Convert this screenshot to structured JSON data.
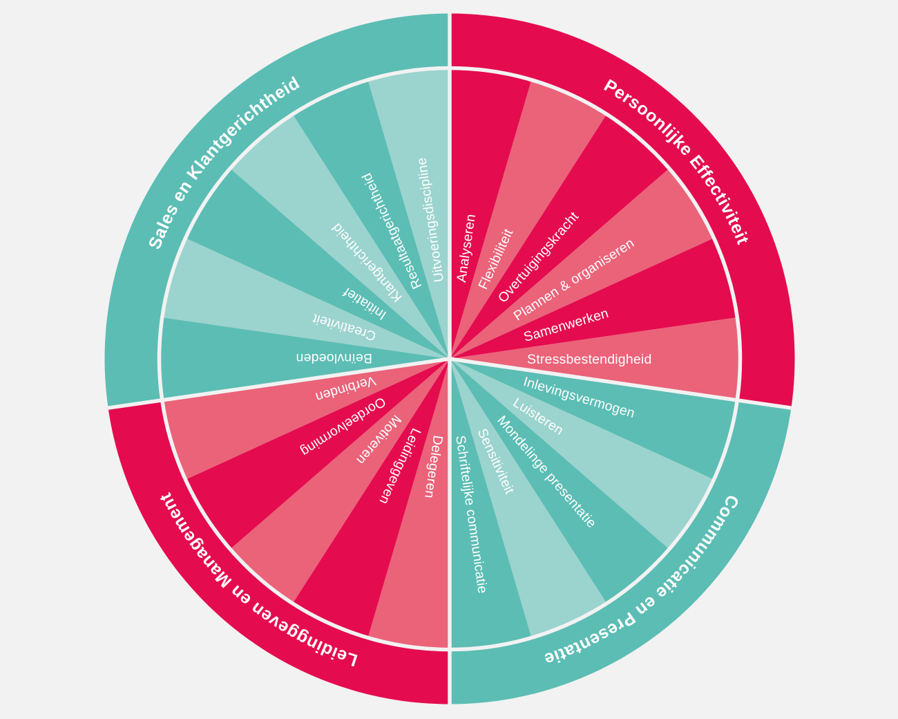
{
  "colors": {
    "background": "#f2f2f2",
    "separator": "#f2f2f2",
    "crimson": "#e50b4f",
    "crimson_light": "#ea6379",
    "teal": "#5cbdb4",
    "teal_light": "#9bd3ce",
    "label_text": "#ffffff"
  },
  "wheel": {
    "quadrants": [
      {
        "name": "Persoonlijke Effectiviteit",
        "band_color": "#e50b4f",
        "wedges": [
          {
            "label": "Analyseren",
            "color": "#e50b4f"
          },
          {
            "label": "Flexibiliteit",
            "color": "#ea6379"
          },
          {
            "label": "Overtuigingskracht",
            "color": "#e50b4f"
          },
          {
            "label": "Plannen & organiseren",
            "color": "#ea6379"
          },
          {
            "label": "Samenwerken",
            "color": "#e50b4f"
          },
          {
            "label": "Stressbestendigheid",
            "color": "#ea6379"
          }
        ]
      },
      {
        "name": "Communicatie en Presentatie",
        "band_color": "#5cbdb4",
        "wedges": [
          {
            "label": "Inlevingsvermogen",
            "color": "#5cbdb4"
          },
          {
            "label": "Luisteren",
            "color": "#9bd3ce"
          },
          {
            "label": "Mondelinge presentatie",
            "color": "#5cbdb4"
          },
          {
            "label": "Sensitiviteit",
            "color": "#9bd3ce"
          },
          {
            "label": "Schriftelijke communicatie",
            "color": "#5cbdb4"
          }
        ]
      },
      {
        "name": "Leidinggeven en Management",
        "band_color": "#e50b4f",
        "wedges": [
          {
            "label": "Delegeren",
            "color": "#ea6379"
          },
          {
            "label": "Leidinggeven",
            "color": "#e50b4f"
          },
          {
            "label": "Motiveren",
            "color": "#ea6379"
          },
          {
            "label": "Oordeelvorming",
            "color": "#e50b4f"
          },
          {
            "label": "Verbinden",
            "color": "#ea6379"
          }
        ]
      },
      {
        "name": "Sales en Klantgerichtheid",
        "band_color": "#5cbdb4",
        "wedges": [
          {
            "label": "Beïnvloeden",
            "color": "#5cbdb4"
          },
          {
            "label": "Creativiteit",
            "color": "#9bd3ce"
          },
          {
            "label": "Initiatief",
            "color": "#5cbdb4"
          },
          {
            "label": "Klantgerichtheid",
            "color": "#9bd3ce"
          },
          {
            "label": "Resultaatgerichtheid",
            "color": "#5cbdb4"
          },
          {
            "label": "Uitvoeringsdiscipline",
            "color": "#9bd3ce"
          }
        ]
      }
    ]
  }
}
